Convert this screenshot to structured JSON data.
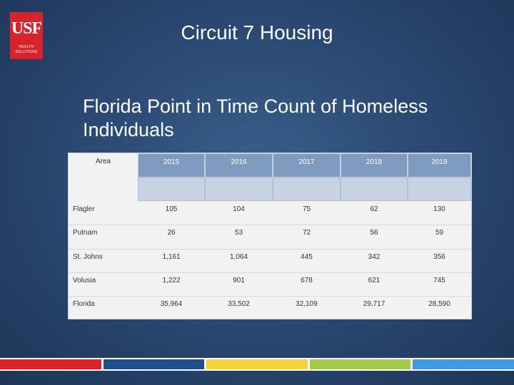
{
  "logo": {
    "mark": "USF",
    "sub1": "HEALTH",
    "sub2": "SOLUTIONS"
  },
  "title": "Circuit 7 Housing",
  "subtitle": "Florida  Point in Time Count of Homeless Individuals",
  "table": {
    "headers": [
      "Area",
      "2015",
      "2016",
      "2017",
      "2018",
      "2019"
    ],
    "rows": [
      {
        "area": "Flagler",
        "values": [
          "105",
          "104",
          "75",
          "62",
          "130"
        ]
      },
      {
        "area": "Putnam",
        "values": [
          "26",
          "53",
          "72",
          "56",
          "59"
        ]
      },
      {
        "area": "St. Johns",
        "values": [
          "1,161",
          "1,064",
          "445",
          "342",
          "356"
        ]
      },
      {
        "area": "Volusia",
        "values": [
          "1,222",
          "901",
          "678",
          "621",
          "745"
        ]
      },
      {
        "area": "Florida",
        "values": [
          "35,964",
          "33,502",
          "32,109",
          "29,717",
          "28,590"
        ]
      }
    ]
  },
  "footer_colors": [
    "#d8232a",
    "#1f4e8c",
    "#f2d43a",
    "#a3c94a",
    "#3d9be0"
  ]
}
